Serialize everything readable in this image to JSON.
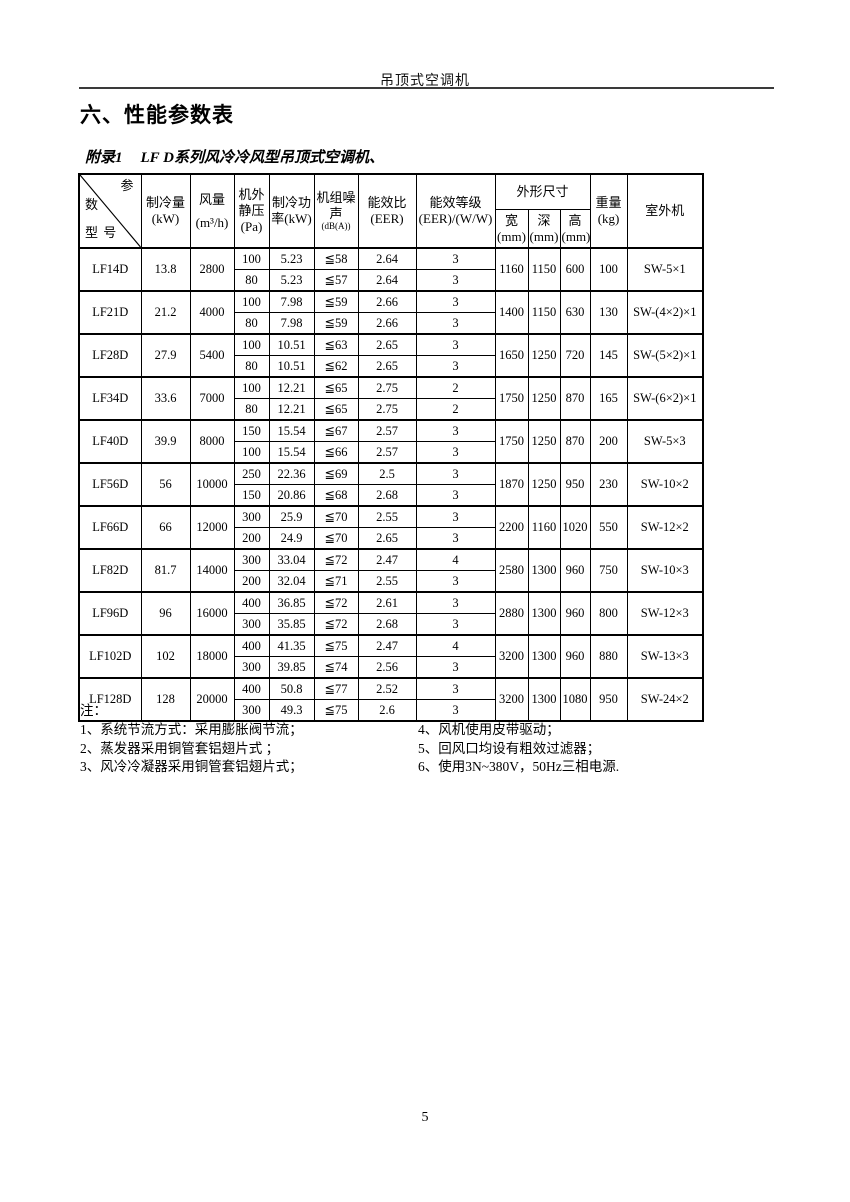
{
  "page": {
    "header_title": "吊顶式空调机",
    "section_title": "六、性能参数表",
    "appendix_label": "附录1",
    "appendix_title": "LF D系列风冷冷风型吊顶式空调机、",
    "page_number": "5"
  },
  "table": {
    "h": {
      "corner": [
        "参",
        "数",
        "型 号"
      ],
      "cooling": [
        "制冷量",
        "(kW)"
      ],
      "airflow": [
        "风量",
        "(m³/h)"
      ],
      "esp": [
        "机外",
        "静压",
        "(Pa)"
      ],
      "power": [
        "制冷功",
        "率(kW)"
      ],
      "noise": [
        "机组噪",
        "声",
        "(dB(A))"
      ],
      "eer": [
        "能效比",
        "(EER)"
      ],
      "grade": [
        "能效等级",
        "(EER)/(W/W)"
      ],
      "dims": "外形尺寸",
      "dim_w": [
        "宽",
        "(mm)"
      ],
      "dim_d": [
        "深",
        "(mm)"
      ],
      "dim_h": [
        "高",
        "(mm)"
      ],
      "weight": [
        "重量",
        "(kg)"
      ],
      "outdoor": "室外机"
    },
    "rows": [
      {
        "model": "LF14D",
        "cooling": "13.8",
        "airflow": "2800",
        "sub": [
          {
            "pa": "100",
            "power": "5.23",
            "noise": "≦58",
            "eer": "2.64",
            "grade": "3"
          },
          {
            "pa": "80",
            "power": "5.23",
            "noise": "≦57",
            "eer": "2.64",
            "grade": "3"
          }
        ],
        "w": "1160",
        "d": "1150",
        "h": "600",
        "weight": "100",
        "outdoor": "SW-5×1"
      },
      {
        "model": "LF21D",
        "cooling": "21.2",
        "airflow": "4000",
        "sub": [
          {
            "pa": "100",
            "power": "7.98",
            "noise": "≦59",
            "eer": "2.66",
            "grade": "3"
          },
          {
            "pa": "80",
            "power": "7.98",
            "noise": "≦59",
            "eer": "2.66",
            "grade": "3"
          }
        ],
        "w": "1400",
        "d": "1150",
        "h": "630",
        "weight": "130",
        "outdoor": "SW-(4×2)×1"
      },
      {
        "model": "LF28D",
        "cooling": "27.9",
        "airflow": "5400",
        "sub": [
          {
            "pa": "100",
            "power": "10.51",
            "noise": "≦63",
            "eer": "2.65",
            "grade": "3"
          },
          {
            "pa": "80",
            "power": "10.51",
            "noise": "≦62",
            "eer": "2.65",
            "grade": "3"
          }
        ],
        "w": "1650",
        "d": "1250",
        "h": "720",
        "weight": "145",
        "outdoor": "SW-(5×2)×1"
      },
      {
        "model": "LF34D",
        "cooling": "33.6",
        "airflow": "7000",
        "sub": [
          {
            "pa": "100",
            "power": "12.21",
            "noise": "≦65",
            "eer": "2.75",
            "grade": "2"
          },
          {
            "pa": "80",
            "power": "12.21",
            "noise": "≦65",
            "eer": "2.75",
            "grade": "2"
          }
        ],
        "w": "1750",
        "d": "1250",
        "h": "870",
        "weight": "165",
        "outdoor": "SW-(6×2)×1"
      },
      {
        "model": "LF40D",
        "cooling": "39.9",
        "airflow": "8000",
        "sub": [
          {
            "pa": "150",
            "power": "15.54",
            "noise": "≦67",
            "eer": "2.57",
            "grade": "3"
          },
          {
            "pa": "100",
            "power": "15.54",
            "noise": "≦66",
            "eer": "2.57",
            "grade": "3"
          }
        ],
        "w": "1750",
        "d": "1250",
        "h": "870",
        "weight": "200",
        "outdoor": "SW-5×3"
      },
      {
        "model": "LF56D",
        "cooling": "56",
        "airflow": "10000",
        "sub": [
          {
            "pa": "250",
            "power": "22.36",
            "noise": "≦69",
            "eer": "2.5",
            "grade": "3"
          },
          {
            "pa": "150",
            "power": "20.86",
            "noise": "≦68",
            "eer": "2.68",
            "grade": "3"
          }
        ],
        "w": "1870",
        "d": "1250",
        "h": "950",
        "weight": "230",
        "outdoor": "SW-10×2"
      },
      {
        "model": "LF66D",
        "cooling": "66",
        "airflow": "12000",
        "sub": [
          {
            "pa": "300",
            "power": "25.9",
            "noise": "≦70",
            "eer": "2.55",
            "grade": "3"
          },
          {
            "pa": "200",
            "power": "24.9",
            "noise": "≦70",
            "eer": "2.65",
            "grade": "3"
          }
        ],
        "w": "2200",
        "d": "1160",
        "h": "1020",
        "weight": "550",
        "outdoor": "SW-12×2"
      },
      {
        "model": "LF82D",
        "cooling": "81.7",
        "airflow": "14000",
        "sub": [
          {
            "pa": "300",
            "power": "33.04",
            "noise": "≦72",
            "eer": "2.47",
            "grade": "4"
          },
          {
            "pa": "200",
            "power": "32.04",
            "noise": "≦71",
            "eer": "2.55",
            "grade": "3"
          }
        ],
        "w": "2580",
        "d": "1300",
        "h": "960",
        "weight": "750",
        "outdoor": "SW-10×3"
      },
      {
        "model": "LF96D",
        "cooling": "96",
        "airflow": "16000",
        "sub": [
          {
            "pa": "400",
            "power": "36.85",
            "noise": "≦72",
            "eer": "2.61",
            "grade": "3"
          },
          {
            "pa": "300",
            "power": "35.85",
            "noise": "≦72",
            "eer": "2.68",
            "grade": "3"
          }
        ],
        "w": "2880",
        "d": "1300",
        "h": "960",
        "weight": "800",
        "outdoor": "SW-12×3"
      },
      {
        "model": "LF102D",
        "cooling": "102",
        "airflow": "18000",
        "sub": [
          {
            "pa": "400",
            "power": "41.35",
            "noise": "≦75",
            "eer": "2.47",
            "grade": "4"
          },
          {
            "pa": "300",
            "power": "39.85",
            "noise": "≦74",
            "eer": "2.56",
            "grade": "3"
          }
        ],
        "w": "3200",
        "d": "1300",
        "h": "960",
        "weight": "880",
        "outdoor": "SW-13×3"
      },
      {
        "model": "LF128D",
        "cooling": "128",
        "airflow": "20000",
        "sub": [
          {
            "pa": "400",
            "power": "50.8",
            "noise": "≦77",
            "eer": "2.52",
            "grade": "3"
          },
          {
            "pa": "300",
            "power": "49.3",
            "noise": "≦75",
            "eer": "2.6",
            "grade": "3"
          }
        ],
        "w": "3200",
        "d": "1300",
        "h": "1080",
        "weight": "950",
        "outdoor": "SW-24×2"
      }
    ]
  },
  "notes": {
    "label": "注：",
    "left": [
      "1、系统节流方式：采用膨胀阀节流；",
      "2、蒸发器采用铜管套铝翅片式 ；",
      "3、风冷冷凝器采用铜管套铝翅片式；"
    ],
    "right": [
      "4、风机使用皮带驱动；",
      "5、回风口均设有粗效过滤器；",
      "6、使用3N~380V，50Hz三相电源."
    ]
  }
}
